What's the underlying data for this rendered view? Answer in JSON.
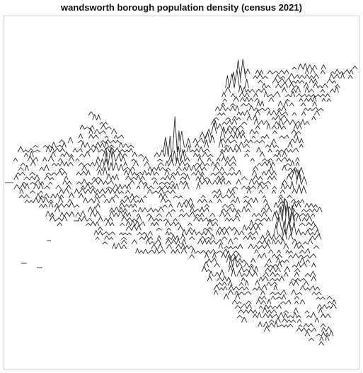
{
  "title": "wandsworth borough population density (census 2021)",
  "map": {
    "style": "ridgeline-spikes",
    "stroke_color": "#2a2a2a",
    "fill_color": "#ffffff",
    "frame_color": "#cfcfcf",
    "background": "#ffffff"
  }
}
